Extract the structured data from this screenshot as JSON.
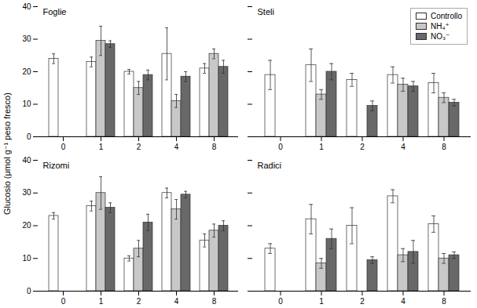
{
  "chart_data": [
    {
      "type": "bar",
      "title": "Foglie",
      "ylabel": "Glucosio (μmol g⁻¹ peso fresco)",
      "categories": [
        "0",
        "1",
        "2",
        "4",
        "8"
      ],
      "series": [
        {
          "name": "Controllo",
          "color": "#ffffff",
          "values": [
            24.0,
            23.0,
            20.0,
            25.5,
            21.0
          ],
          "errors": [
            1.5,
            1.5,
            0.7,
            8.0,
            1.5
          ]
        },
        {
          "name": "NH₄⁺",
          "color": "#c8c8c8",
          "values": [
            null,
            29.5,
            15.0,
            11.0,
            25.5
          ],
          "errors": [
            null,
            4.5,
            2.0,
            2.0,
            1.5
          ]
        },
        {
          "name": "NO₃⁻",
          "color": "#686868",
          "values": [
            null,
            28.5,
            19.0,
            18.5,
            21.5
          ],
          "errors": [
            null,
            1.0,
            1.5,
            1.5,
            2.0
          ]
        }
      ],
      "ylim": [
        0,
        40
      ],
      "yticks": [
        0,
        10,
        20,
        30,
        40
      ],
      "grid": false
    },
    {
      "type": "bar",
      "title": "Steli",
      "categories": [
        "0",
        "1",
        "2",
        "4",
        "8"
      ],
      "series": [
        {
          "name": "Controllo",
          "color": "#ffffff",
          "values": [
            19.0,
            22.0,
            17.5,
            19.0,
            16.5
          ],
          "errors": [
            4.5,
            5.0,
            2.0,
            2.5,
            3.0
          ]
        },
        {
          "name": "NH₄⁺",
          "color": "#c8c8c8",
          "values": [
            null,
            13.0,
            null,
            16.0,
            12.0
          ],
          "errors": [
            null,
            1.5,
            null,
            2.0,
            1.5
          ]
        },
        {
          "name": "NO₃⁻",
          "color": "#686868",
          "values": [
            null,
            20.0,
            9.5,
            15.5,
            10.5
          ],
          "errors": [
            null,
            2.5,
            1.5,
            1.5,
            1.0
          ]
        }
      ],
      "ylim": [
        0,
        40
      ],
      "yticks": [
        0,
        10,
        20,
        30,
        40
      ],
      "grid": false,
      "legend": "upper right",
      "tick_labels": "x"
    },
    {
      "type": "bar",
      "title": "Rizomi",
      "categories": [
        "0",
        "1",
        "2",
        "4",
        "8"
      ],
      "series": [
        {
          "name": "Controllo",
          "color": "#ffffff",
          "values": [
            23.0,
            26.0,
            10.0,
            30.0,
            15.5
          ],
          "errors": [
            1.0,
            1.5,
            0.8,
            1.5,
            2.0
          ]
        },
        {
          "name": "NH₄⁺",
          "color": "#c8c8c8",
          "values": [
            null,
            30.0,
            13.0,
            25.0,
            18.5
          ],
          "errors": [
            null,
            5.0,
            2.5,
            3.0,
            2.0
          ]
        },
        {
          "name": "NO₃⁻",
          "color": "#686868",
          "values": [
            null,
            25.5,
            21.0,
            29.5,
            20.0
          ],
          "errors": [
            null,
            1.5,
            2.5,
            1.0,
            1.5
          ]
        }
      ],
      "ylim": [
        0,
        40
      ],
      "yticks": [
        0,
        10,
        20,
        30,
        40
      ],
      "grid": false
    },
    {
      "type": "bar",
      "title": "Radici",
      "categories": [
        "0",
        "1",
        "2",
        "4",
        "8"
      ],
      "series": [
        {
          "name": "Controllo",
          "color": "#ffffff",
          "values": [
            13.0,
            22.0,
            20.0,
            29.0,
            20.5
          ],
          "errors": [
            1.5,
            4.5,
            5.5,
            2.0,
            2.5
          ]
        },
        {
          "name": "NH₄⁺",
          "color": "#c8c8c8",
          "values": [
            null,
            8.5,
            null,
            11.0,
            10.0
          ],
          "errors": [
            null,
            1.5,
            null,
            2.0,
            1.5
          ]
        },
        {
          "name": "NO₃⁻",
          "color": "#686868",
          "values": [
            null,
            16.0,
            9.5,
            12.0,
            11.0
          ],
          "errors": [
            null,
            3.0,
            1.0,
            3.5,
            1.0
          ]
        }
      ],
      "ylim": [
        0,
        40
      ],
      "yticks": [
        0,
        10,
        20,
        30,
        40
      ],
      "grid": false,
      "tick_labels": "x"
    }
  ]
}
